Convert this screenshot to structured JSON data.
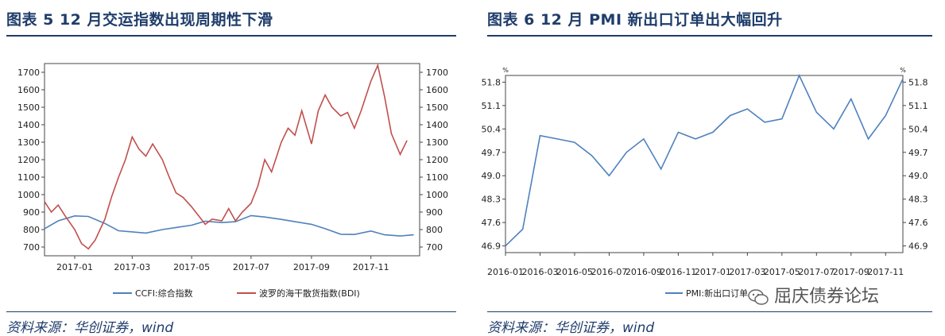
{
  "figures": [
    {
      "title": "图表 5   12 月交运指数出现周期性下滑",
      "source": "资料来源：华创证券，wind"
    },
    {
      "title": "图表 6   12 月 PMI 新出口订单出大幅回升",
      "source": "资料来源：华创证券，wind"
    }
  ],
  "watermark": {
    "text": "屈庆债券论坛",
    "icon": "wechat-icon"
  },
  "chart_data": [
    {
      "type": "line",
      "title": "",
      "xlabel": "",
      "ylabel": "",
      "x_ticks": [
        "2017-01",
        "2017-03",
        "2017-05",
        "2017-07",
        "2017-09",
        "2017-11"
      ],
      "y_ticks_left": [
        700,
        800,
        900,
        1000,
        1100,
        1200,
        1300,
        1400,
        1500,
        1600,
        1700
      ],
      "y_ticks_right": [
        700,
        800,
        900,
        1000,
        1100,
        1200,
        1300,
        1400,
        1500,
        1600,
        1700
      ],
      "ylim": [
        650,
        1750
      ],
      "x_range": [
        "2016-12",
        "2017-12"
      ],
      "grid": false,
      "legend_position": "bottom",
      "series": [
        {
          "name": "CCFI:综合指数",
          "color": "#4f81bd",
          "points": [
            [
              "2016-12-01",
              805
            ],
            [
              "2016-12-15",
              850
            ],
            [
              "2017-01-01",
              878
            ],
            [
              "2017-01-15",
              875
            ],
            [
              "2017-02-01",
              835
            ],
            [
              "2017-02-15",
              793
            ],
            [
              "2017-03-01",
              787
            ],
            [
              "2017-03-15",
              780
            ],
            [
              "2017-04-01",
              800
            ],
            [
              "2017-04-15",
              812
            ],
            [
              "2017-05-01",
              825
            ],
            [
              "2017-05-15",
              848
            ],
            [
              "2017-06-01",
              840
            ],
            [
              "2017-06-15",
              845
            ],
            [
              "2017-07-01",
              880
            ],
            [
              "2017-07-15",
              872
            ],
            [
              "2017-08-01",
              858
            ],
            [
              "2017-08-15",
              845
            ],
            [
              "2017-09-01",
              830
            ],
            [
              "2017-09-15",
              805
            ],
            [
              "2017-10-01",
              773
            ],
            [
              "2017-10-15",
              772
            ],
            [
              "2017-11-01",
              792
            ],
            [
              "2017-11-15",
              770
            ],
            [
              "2017-12-01",
              763
            ],
            [
              "2017-12-15",
              770
            ]
          ]
        },
        {
          "name": "波罗的海干散货指数(BDI)",
          "color": "#c0504d",
          "points": [
            [
              "2016-12-01",
              960
            ],
            [
              "2016-12-08",
              900
            ],
            [
              "2016-12-15",
              940
            ],
            [
              "2016-12-22",
              880
            ],
            [
              "2017-01-01",
              800
            ],
            [
              "2017-01-08",
              720
            ],
            [
              "2017-01-15",
              690
            ],
            [
              "2017-01-22",
              740
            ],
            [
              "2017-02-01",
              860
            ],
            [
              "2017-02-08",
              990
            ],
            [
              "2017-02-15",
              1100
            ],
            [
              "2017-02-22",
              1200
            ],
            [
              "2017-03-01",
              1330
            ],
            [
              "2017-03-08",
              1260
            ],
            [
              "2017-03-15",
              1220
            ],
            [
              "2017-03-22",
              1290
            ],
            [
              "2017-04-01",
              1200
            ],
            [
              "2017-04-08",
              1100
            ],
            [
              "2017-04-15",
              1010
            ],
            [
              "2017-04-22",
              985
            ],
            [
              "2017-05-01",
              930
            ],
            [
              "2017-05-08",
              880
            ],
            [
              "2017-05-15",
              830
            ],
            [
              "2017-05-22",
              860
            ],
            [
              "2017-06-01",
              850
            ],
            [
              "2017-06-08",
              920
            ],
            [
              "2017-06-15",
              850
            ],
            [
              "2017-06-22",
              900
            ],
            [
              "2017-07-01",
              950
            ],
            [
              "2017-07-08",
              1050
            ],
            [
              "2017-07-15",
              1200
            ],
            [
              "2017-07-22",
              1130
            ],
            [
              "2017-08-01",
              1300
            ],
            [
              "2017-08-08",
              1380
            ],
            [
              "2017-08-15",
              1340
            ],
            [
              "2017-08-22",
              1480
            ],
            [
              "2017-09-01",
              1290
            ],
            [
              "2017-09-08",
              1480
            ],
            [
              "2017-09-15",
              1570
            ],
            [
              "2017-09-22",
              1500
            ],
            [
              "2017-10-01",
              1450
            ],
            [
              "2017-10-08",
              1470
            ],
            [
              "2017-10-15",
              1380
            ],
            [
              "2017-10-22",
              1480
            ],
            [
              "2017-11-01",
              1650
            ],
            [
              "2017-11-08",
              1740
            ],
            [
              "2017-11-15",
              1560
            ],
            [
              "2017-11-22",
              1350
            ],
            [
              "2017-12-01",
              1230
            ],
            [
              "2017-12-08",
              1310
            ]
          ]
        }
      ]
    },
    {
      "type": "line",
      "title": "",
      "xlabel": "",
      "ylabel": "%",
      "x_ticks": [
        "2016-01",
        "2016-03",
        "2016-05",
        "2016-07",
        "2016-09",
        "2016-11",
        "2017-01",
        "2017-03",
        "2017-05",
        "2017-07",
        "2017-09",
        "2017-11"
      ],
      "y_ticks_left": [
        46.9,
        47.6,
        48.3,
        49.0,
        49.7,
        50.4,
        51.1,
        51.8
      ],
      "y_ticks_right": [
        46.9,
        47.6,
        48.3,
        49.0,
        49.7,
        50.4,
        51.1,
        51.8
      ],
      "ylim": [
        46.7,
        52.0
      ],
      "grid": false,
      "legend_position": "bottom",
      "series": [
        {
          "name": "PMI:新出口订单",
          "color": "#4f81bd",
          "categories": [
            "2016-01",
            "2016-02",
            "2016-03",
            "2016-04",
            "2016-05",
            "2016-06",
            "2016-07",
            "2016-08",
            "2016-09",
            "2016-10",
            "2016-11",
            "2016-12",
            "2017-01",
            "2017-02",
            "2017-03",
            "2017-04",
            "2017-05",
            "2017-06",
            "2017-07",
            "2017-08",
            "2017-09",
            "2017-10",
            "2017-11",
            "2017-12"
          ],
          "values": [
            46.9,
            47.4,
            50.2,
            50.1,
            50.0,
            49.6,
            49.0,
            49.7,
            50.1,
            49.2,
            50.3,
            50.1,
            50.3,
            50.8,
            51.0,
            50.6,
            50.7,
            52.0,
            50.9,
            50.4,
            51.3,
            50.1,
            50.8,
            51.9
          ]
        }
      ]
    }
  ]
}
